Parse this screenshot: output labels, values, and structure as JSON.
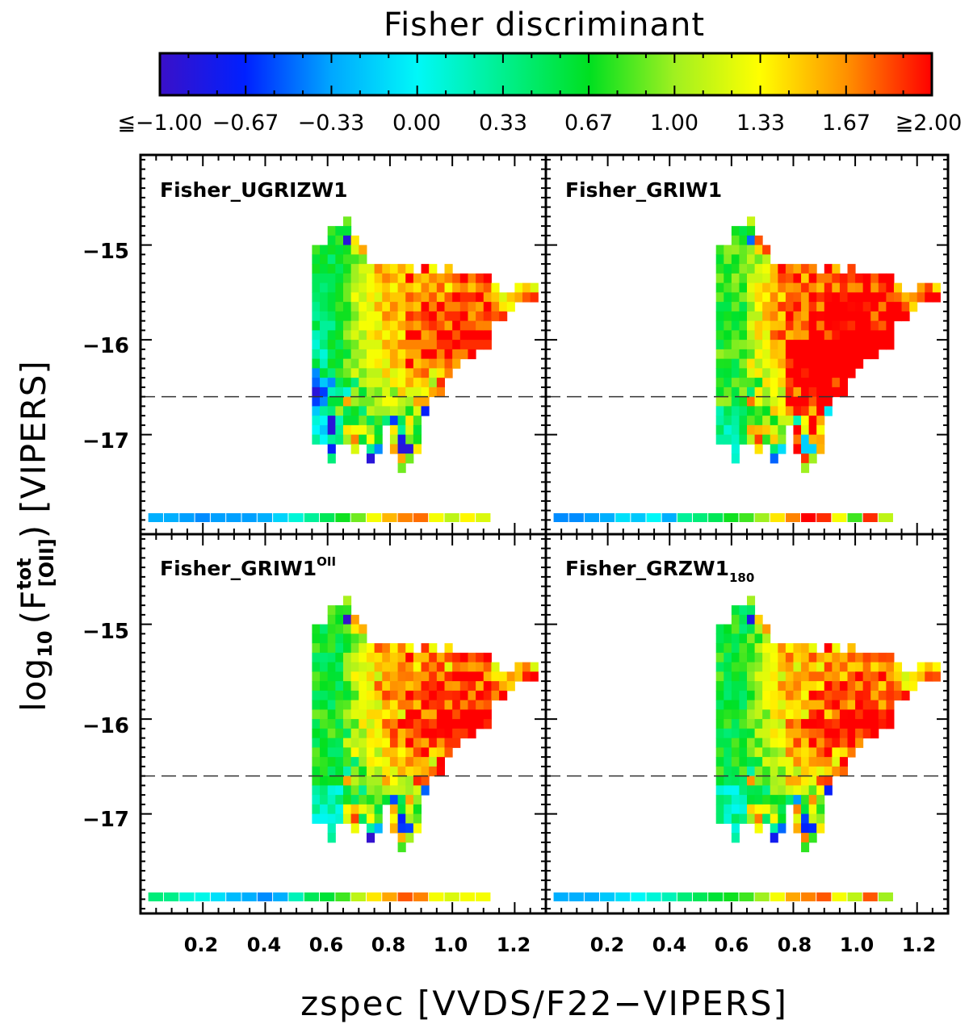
{
  "chart_data": {
    "type": "heatmap",
    "colorbar": {
      "title": "Fisher discriminant",
      "range": [
        -1.0,
        2.0
      ],
      "tick_labels": [
        "≦−1.00",
        "−0.67",
        "−0.33",
        "0.00",
        "0.33",
        "0.67",
        "1.00",
        "1.33",
        "1.67",
        "≧2.00"
      ],
      "stops": [
        {
          "v": -1.0,
          "c": "#3a10c8"
        },
        {
          "v": -0.67,
          "c": "#0020ff"
        },
        {
          "v": -0.33,
          "c": "#00a8ff"
        },
        {
          "v": 0.0,
          "c": "#00f8f8"
        },
        {
          "v": 0.33,
          "c": "#00f090"
        },
        {
          "v": 0.67,
          "c": "#00e020"
        },
        {
          "v": 1.0,
          "c": "#a0f020"
        },
        {
          "v": 1.33,
          "c": "#ffff00"
        },
        {
          "v": 1.67,
          "c": "#ff9000"
        },
        {
          "v": 2.0,
          "c": "#ff0000"
        }
      ]
    },
    "xlabel": "zspec [VVDS/F22−VIPERS]",
    "ylabel": {
      "main": "log",
      "sub": "10",
      "open": "(F",
      "sup": "tot",
      "species": "[OII]",
      "close": ")",
      "survey": "[VIPERS]"
    },
    "x_ticks": [
      "0.2",
      "0.4",
      "0.6",
      "0.8",
      "1.0",
      "1.2"
    ],
    "y_ticks": [
      "−15",
      "−16",
      "−17"
    ],
    "xlim": [
      0.0,
      1.3
    ],
    "ylim": [
      -18.05,
      -14.05
    ],
    "dashed_line_y": -16.6,
    "bin": {
      "dz": 0.025,
      "dflux": 0.1
    },
    "x_tick_values": [
      0.2,
      0.4,
      0.6,
      0.8,
      1.0,
      1.2
    ],
    "y_tick_values": [
      -15,
      -16,
      -17
    ],
    "panels": [
      {
        "name": "Fisher_UGRIZW1",
        "label_main": "Fisher_UGRIZW1",
        "label_sup": "",
        "label_sub": "",
        "strip_z_start": 0.05,
        "strip_values": [
          -0.3,
          -0.3,
          -0.35,
          -0.4,
          -0.35,
          -0.35,
          -0.35,
          -0.3,
          -0.15,
          0.1,
          0.3,
          0.5,
          0.7,
          0.9,
          1.3,
          1.55,
          1.7,
          1.75,
          1.3,
          1.1,
          1.35,
          1.2
        ],
        "columns": [
          {
            "z": 0.55,
            "top": -15.0,
            "values": [
              0.8,
              0.6,
              0.7,
              0.5,
              0.5,
              0.45,
              0.35,
              0.3,
              0.6,
              0.2,
              0.1,
              0.3,
              0.6,
              -0.4,
              -0.5,
              -0.9,
              -0.6,
              -0.2,
              0.1,
              0.0,
              0.3
            ]
          },
          {
            "z": 0.575,
            "top": -15.0,
            "values": [
              0.6,
              0.7,
              0.6,
              0.5,
              0.4,
              0.5,
              0.5,
              0.4,
              0.3,
              0.3,
              0.4,
              0.1,
              0.2,
              0.6,
              -0.2,
              -0.6,
              -0.4,
              0.3,
              0.0,
              -0.2,
              0.0
            ]
          },
          {
            "z": 0.6,
            "top": -14.8,
            "values": [
              0.8,
              0.6,
              0.7,
              0.4,
              0.7,
              0.5,
              0.5,
              0.6,
              0.6,
              0.5,
              0.3,
              0.6,
              0.7,
              0.5,
              0.7,
              0.4,
              -0.4,
              0.2,
              0.6,
              0.4,
              -0.9,
              -0.9,
              0.3,
              -0.7,
              0.4
            ]
          },
          {
            "z": 0.625,
            "top": -14.8,
            "values": [
              0.6,
              0.8,
              0.6,
              0.7,
              0.5,
              0.6,
              0.7,
              0.7,
              0.8,
              0.7,
              0.6,
              0.7,
              0.5,
              0.7,
              0.6,
              0.8,
              0.5,
              0.3,
              0.6,
              1.0,
              0.2,
              0.3,
              0.4
            ]
          },
          {
            "z": 0.65,
            "top": -14.7,
            "values": [
              0.9,
              0.6,
              -0.9,
              0.7,
              0.8,
              0.7,
              0.8,
              0.9,
              0.9,
              0.7,
              0.7,
              0.9,
              1.0,
              0.8,
              0.6,
              1.0,
              0.9,
              0.7,
              0.1,
              1.6,
              0.5,
              0.6,
              1.4,
              1.0
            ]
          },
          {
            "z": 0.675,
            "top": -14.9,
            "values": [
              1.4,
              1.2,
              0.8,
              1.0,
              1.0,
              1.1,
              1.3,
              1.0,
              0.9,
              1.1,
              1.2,
              0.9,
              1.0,
              0.9,
              1.2,
              0.4,
              1.0,
              1.0,
              0.7,
              0.6,
              1.3,
              1.7,
              1.2
            ]
          },
          {
            "z": 0.7,
            "top": -15.0,
            "values": [
              1.6,
              0.9,
              1.2,
              1.1,
              1.2,
              1.1,
              1.3,
              1.2,
              1.3,
              1.0,
              1.2,
              1.0,
              1.2,
              0.9,
              1.1,
              0.6,
              0.9,
              0.4,
              0.9,
              1.3,
              0.6
            ]
          },
          {
            "z": 0.725,
            "top": -15.2,
            "values": [
              1.2,
              1.3,
              1.3,
              1.4,
              1.2,
              1.3,
              1.3,
              1.4,
              1.2,
              1.3,
              1.3,
              1.1,
              1.2,
              1.0,
              0.9,
              1.1,
              0.5,
              1.0,
              1.3,
              0.3,
              -0.9
            ]
          },
          {
            "z": 0.75,
            "top": -15.2,
            "values": [
              1.7,
              1.5,
              1.4,
              1.2,
              1.6,
              1.3,
              1.2,
              1.5,
              1.2,
              1.3,
              1.4,
              1.1,
              1.2,
              0.9,
              1.1,
              1.0,
              0.8,
              0.6,
              0.7,
              -0.4
            ]
          },
          {
            "z": 0.775,
            "top": -15.2,
            "values": [
              1.5,
              1.7,
              1.5,
              1.6,
              1.4,
              1.7,
              1.5,
              1.3,
              1.6,
              1.4,
              1.2,
              1.5,
              1.1,
              1.2,
              1.3,
              1.0,
              0.4
            ]
          },
          {
            "z": 0.8,
            "top": -15.2,
            "values": [
              1.4,
              1.6,
              1.3,
              1.5,
              1.7,
              1.6,
              1.4,
              1.5,
              1.5,
              1.6,
              1.6,
              1.2,
              1.4,
              0.9,
              1.3,
              1.1,
              -0.6,
              1.4,
              1.1,
              1.6
            ]
          },
          {
            "z": 0.825,
            "top": -15.2,
            "values": [
              1.6,
              1.4,
              1.6,
              1.5,
              1.5,
              1.4,
              1.6,
              1.3,
              1.7,
              1.4,
              1.5,
              1.3,
              1.3,
              1.5,
              1.1,
              1.0,
              0.5,
              0.3,
              -0.8,
              -0.9,
              1.6,
              0.9
            ]
          },
          {
            "z": 0.85,
            "top": -15.2,
            "values": [
              1.4,
              2.0,
              1.5,
              1.8,
              1.6,
              1.9,
              1.7,
              2.0,
              1.7,
              1.6,
              2.0,
              1.5,
              1.6,
              1.2,
              1.0,
              0.7,
              1.4,
              1.2,
              0.9,
              -0.9,
              0.9
            ]
          },
          {
            "z": 0.875,
            "top": -15.3,
            "values": [
              1.6,
              1.4,
              1.7,
              1.5,
              1.8,
              1.6,
              2.0,
              1.7,
              1.6,
              1.5,
              1.7,
              1.4,
              1.2,
              1.6,
              1.2,
              0.8,
              0.6,
              0.7,
              1.4
            ]
          },
          {
            "z": 0.9,
            "top": -15.2,
            "values": [
              2.0,
              1.5,
              1.7,
              1.6,
              2.0,
              1.9,
              1.8,
              1.6,
              1.7,
              2.0,
              1.6,
              1.8,
              1.5,
              1.3,
              1.6,
              -0.7
            ]
          },
          {
            "z": 0.925,
            "top": -15.2,
            "values": [
              1.3,
              1.7,
              1.5,
              1.8,
              1.7,
              2.0,
              1.9,
              1.7,
              1.7,
              2.0,
              1.7,
              1.2,
              1.0,
              1.6
            ]
          },
          {
            "z": 0.95,
            "top": -15.3,
            "values": [
              1.6,
              1.8,
              1.5,
              2.0,
              1.7,
              1.8,
              2.0,
              1.9,
              1.7,
              1.6,
              1.4,
              1.9,
              1.7
            ]
          },
          {
            "z": 0.975,
            "top": -15.2,
            "values": [
              1.5,
              1.7,
              1.3,
              1.8,
              1.7,
              1.9,
              1.6,
              2.0,
              1.9,
              2.0,
              1.8,
              1.7
            ]
          },
          {
            "z": 1.0,
            "top": -15.3,
            "values": [
              1.8,
              1.6,
              2.0,
              1.7,
              1.9,
              2.0,
              1.8,
              2.0,
              1.7,
              1.6
            ]
          },
          {
            "z": 1.025,
            "top": -15.3,
            "values": [
              2.0,
              1.7,
              1.9,
              1.8,
              2.0,
              1.8,
              2.0,
              1.9,
              1.7
            ]
          },
          {
            "z": 1.05,
            "top": -15.3,
            "values": [
              1.7,
              1.5,
              1.9,
              1.7,
              1.6,
              1.8,
              2.0,
              1.9,
              2.0
            ]
          },
          {
            "z": 1.075,
            "top": -15.3,
            "values": [
              1.9,
              1.7,
              2.0,
              1.6,
              1.8,
              1.7,
              2.0,
              1.9
            ]
          },
          {
            "z": 1.1,
            "top": -15.3,
            "values": [
              2.0,
              1.8,
              1.6,
              2.0,
              1.9,
              1.7,
              2.0,
              1.9
            ]
          },
          {
            "z": 1.125,
            "top": -15.4,
            "values": [
              1.3,
              1.5,
              1.7,
              1.8
            ]
          },
          {
            "z": 1.15,
            "top": -15.5,
            "values": [
              1.2,
              1.4,
              1.9
            ]
          },
          {
            "z": 1.175,
            "top": -15.5,
            "values": [
              1.5,
              1.3
            ]
          },
          {
            "z": 1.2,
            "top": -15.4,
            "values": [
              1.3,
              1.6
            ]
          },
          {
            "z": 1.225,
            "top": -15.4,
            "values": [
              1.5,
              1.8
            ]
          },
          {
            "z": 1.25,
            "top": -15.4,
            "values": [
              1.2,
              1.9
            ]
          }
        ]
      },
      {
        "name": "Fisher_GRIW1",
        "label_main": "Fisher_GRIW1",
        "label_sup": "",
        "label_sub": "",
        "strip_z_start": 0.05,
        "strip_values": [
          -0.4,
          -0.4,
          -0.35,
          -0.3,
          -0.1,
          -0.2,
          0.0,
          -0.3,
          0.3,
          0.4,
          0.5,
          0.7,
          0.8,
          1.0,
          1.4,
          1.7,
          2.0,
          1.9,
          1.3,
          0.8,
          1.9,
          1.1
        ]
      },
      {
        "name": "Fisher_GRIW1_OII",
        "label_main": "Fisher_GRIW1",
        "label_sup": "OII",
        "label_sub": "",
        "strip_z_start": 0.05,
        "strip_values": [
          0.4,
          0.35,
          0.1,
          0.05,
          -0.1,
          -0.25,
          -0.3,
          -0.4,
          -0.3,
          0.2,
          0.5,
          0.6,
          0.8,
          1.1,
          1.4,
          1.6,
          1.8,
          1.7,
          1.3,
          1.2,
          1.3,
          1.3
        ]
      },
      {
        "name": "Fisher_GRZW1_180",
        "label_main": "Fisher_GRZW1",
        "label_sup": "",
        "label_sub": "180",
        "strip_z_start": 0.05,
        "strip_values": [
          -0.3,
          -0.3,
          -0.3,
          -0.2,
          -0.1,
          0.0,
          0.1,
          0.2,
          0.4,
          0.5,
          0.6,
          0.7,
          0.8,
          1.0,
          1.3,
          1.6,
          1.7,
          1.8,
          1.3,
          1.1,
          1.8,
          1.0
        ]
      }
    ]
  }
}
